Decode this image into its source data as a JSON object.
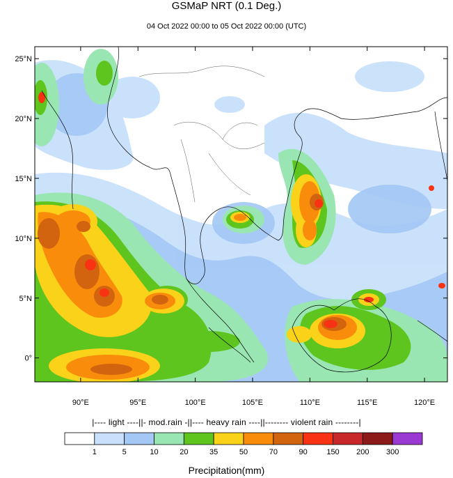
{
  "header": {
    "title": "GSMaP NRT (0.1 Deg.)",
    "subtitle": "04 Oct 2022 00:00 to 05 Oct 2022 00:00 (UTC)"
  },
  "map": {
    "lat_ticks": [
      {
        "value": 25,
        "label": "25°N"
      },
      {
        "value": 20,
        "label": "20°N"
      },
      {
        "value": 15,
        "label": "15°N"
      },
      {
        "value": 10,
        "label": "10°N"
      },
      {
        "value": 5,
        "label": "5°N"
      },
      {
        "value": 0,
        "label": "0°"
      }
    ],
    "lon_ticks": [
      {
        "value": 90,
        "label": "90°E"
      },
      {
        "value": 95,
        "label": "95°E"
      },
      {
        "value": 100,
        "label": "100°E"
      },
      {
        "value": 105,
        "label": "105°E"
      },
      {
        "value": 110,
        "label": "110°E"
      },
      {
        "value": 115,
        "label": "115°E"
      },
      {
        "value": 120,
        "label": "120°E"
      }
    ],
    "extent": {
      "lon_min": 86,
      "lon_max": 122,
      "lat_min": -2,
      "lat_max": 26
    }
  },
  "legend": {
    "categories_text": "|---- light ----||- mod.rain -||---- heavy rain ----||-------- violent rain --------|",
    "colors": [
      "#ffffff",
      "#c8e0fb",
      "#a3c8f5",
      "#99e6b2",
      "#5ec41e",
      "#fad21a",
      "#fa8c0c",
      "#d2640f",
      "#fa3214",
      "#c8282a",
      "#8c1a1a",
      "#9b3ad2"
    ],
    "labels": [
      "1",
      "5",
      "10",
      "20",
      "35",
      "50",
      "70",
      "90",
      "150",
      "200",
      "300"
    ],
    "title": "Precipitation(mm)"
  }
}
